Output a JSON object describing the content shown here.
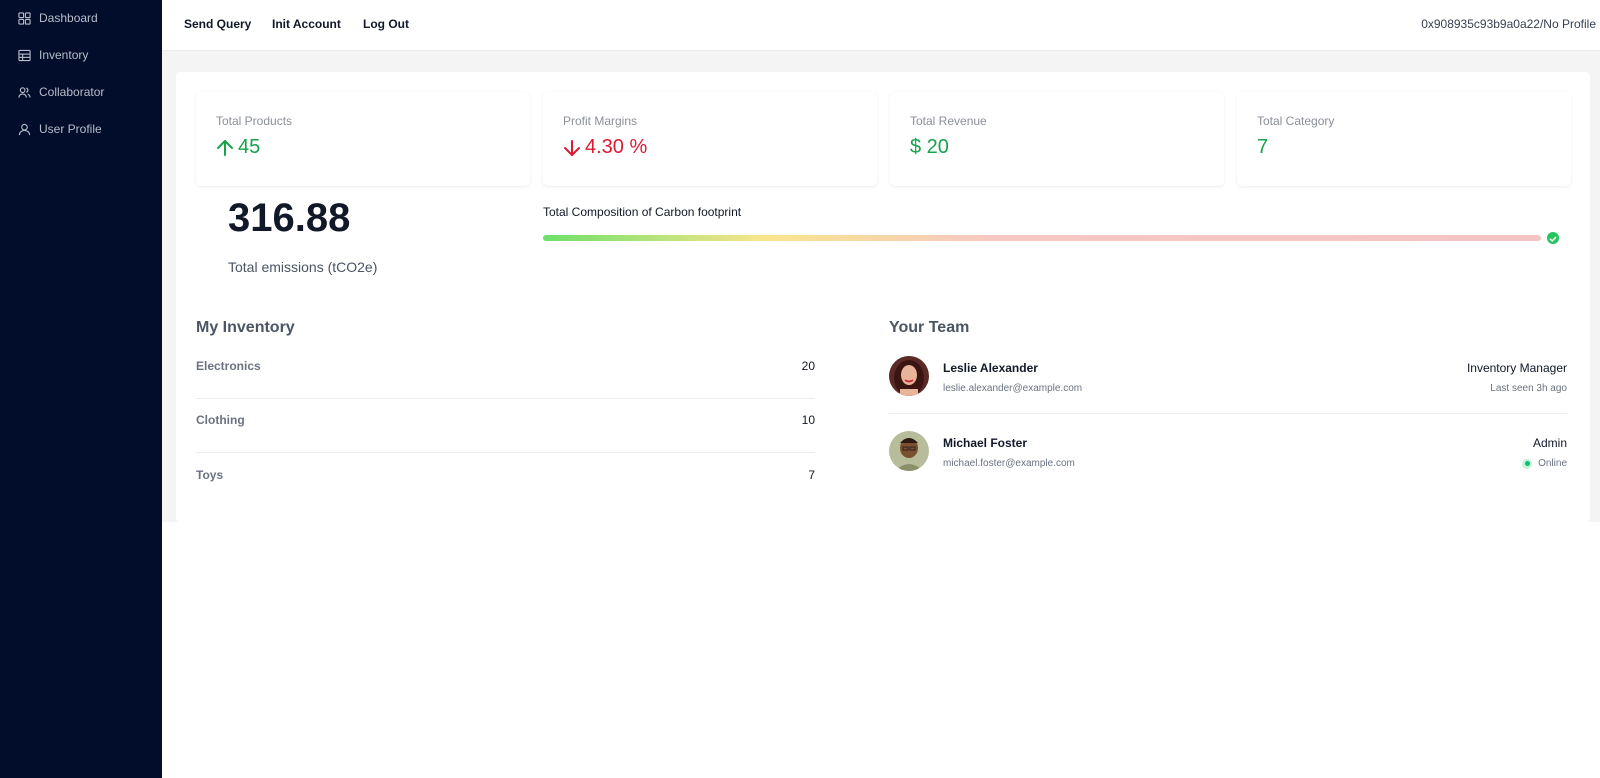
{
  "sidebar": {
    "items": [
      {
        "label": "Dashboard",
        "icon": "grid-icon"
      },
      {
        "label": "Inventory",
        "icon": "table-icon"
      },
      {
        "label": "Collaborator",
        "icon": "users-icon"
      },
      {
        "label": "User Profile",
        "icon": "user-icon"
      }
    ]
  },
  "header": {
    "nav": [
      "Send Query",
      "Init Account",
      "Log Out"
    ],
    "account": "0x908935c93b9a0a22/No Profile"
  },
  "stats": [
    {
      "title": "Total Products",
      "value": "45",
      "trend": "up",
      "color": "#16a34a"
    },
    {
      "title": "Profit Margins",
      "value": "4.30 %",
      "trend": "down",
      "color": "#dc1a32"
    },
    {
      "title": "Total Revenue",
      "value": "$ 20",
      "trend": "none",
      "color": "#16a34a"
    },
    {
      "title": "Total Category",
      "value": "7",
      "trend": "none",
      "color": "#16a34a"
    }
  ],
  "emissions": {
    "value": "316.88",
    "label": "Total emissions (tCO2e)",
    "composition_label": "Total Composition of Carbon footprint",
    "progress_status": "complete"
  },
  "inventory": {
    "title": "My Inventory",
    "items": [
      {
        "name": "Electronics",
        "count": "20"
      },
      {
        "name": "Clothing",
        "count": "10"
      },
      {
        "name": "Toys",
        "count": "7"
      }
    ]
  },
  "team": {
    "title": "Your Team",
    "members": [
      {
        "name": "Leslie Alexander",
        "email": "leslie.alexander@example.com",
        "role": "Inventory Manager",
        "status": "Last seen 3h ago"
      },
      {
        "name": "Michael Foster",
        "email": "michael.foster@example.com",
        "role": "Admin",
        "status": "Online"
      }
    ]
  },
  "colors": {
    "sidebar_bg": "#020c2b",
    "positive": "#16a34a",
    "negative": "#dc1a32",
    "online": "#10b981"
  }
}
